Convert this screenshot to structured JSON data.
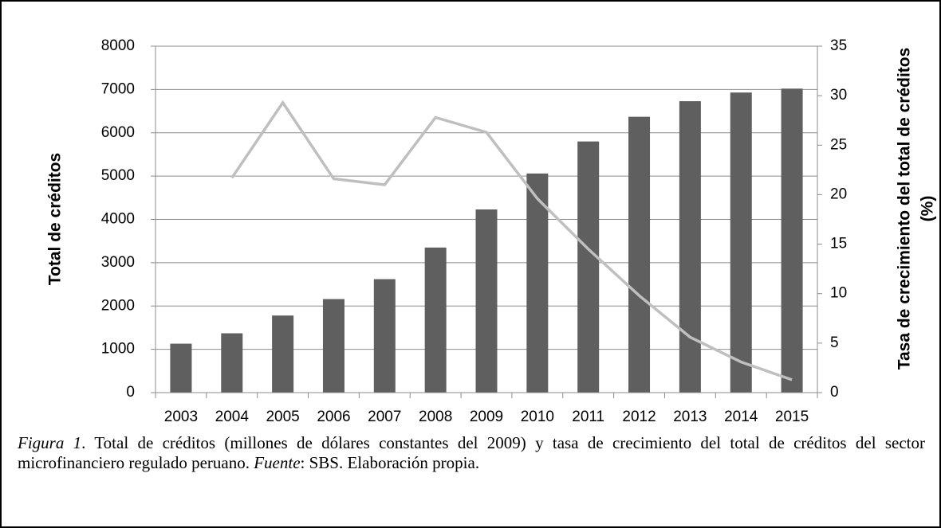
{
  "chart_data": {
    "type": "bar",
    "categories": [
      "2003",
      "2004",
      "2005",
      "2006",
      "2007",
      "2008",
      "2009",
      "2010",
      "2011",
      "2012",
      "2013",
      "2014",
      "2015"
    ],
    "series": [
      {
        "type": "bar",
        "color": "#5f5f5f",
        "values": [
          1130,
          1370,
          1780,
          2160,
          2620,
          3350,
          4230,
          5060,
          5800,
          6370,
          6730,
          6930,
          7020
        ]
      },
      {
        "type": "line",
        "axis": "y2",
        "color": "#bfbfbf",
        "values": [
          null,
          21.7,
          29.3,
          21.6,
          21.0,
          27.8,
          26.3,
          19.6,
          14.5,
          9.8,
          5.6,
          3.1,
          1.3
        ]
      }
    ],
    "ylabel": "Total de créditos",
    "y2label": [
      "Tasa de crecimiento del total de créditos",
      "(%)"
    ],
    "ylim": [
      0,
      8000
    ],
    "yticks": [
      0,
      1000,
      2000,
      3000,
      4000,
      5000,
      6000,
      7000,
      8000
    ],
    "y2lim": [
      0,
      35
    ],
    "y2ticks": [
      0,
      5,
      10,
      15,
      20,
      25,
      30,
      35
    ],
    "grid": true
  },
  "caption": {
    "figure": "Figura 1",
    "text1": ". Total de créditos (millones de dólares constantes del 2009) y tasa de crecimiento del total de créditos del sector microfinanciero regulado peruano. ",
    "source": "Fuente",
    "text2": ": SBS. Elaboración propia."
  }
}
